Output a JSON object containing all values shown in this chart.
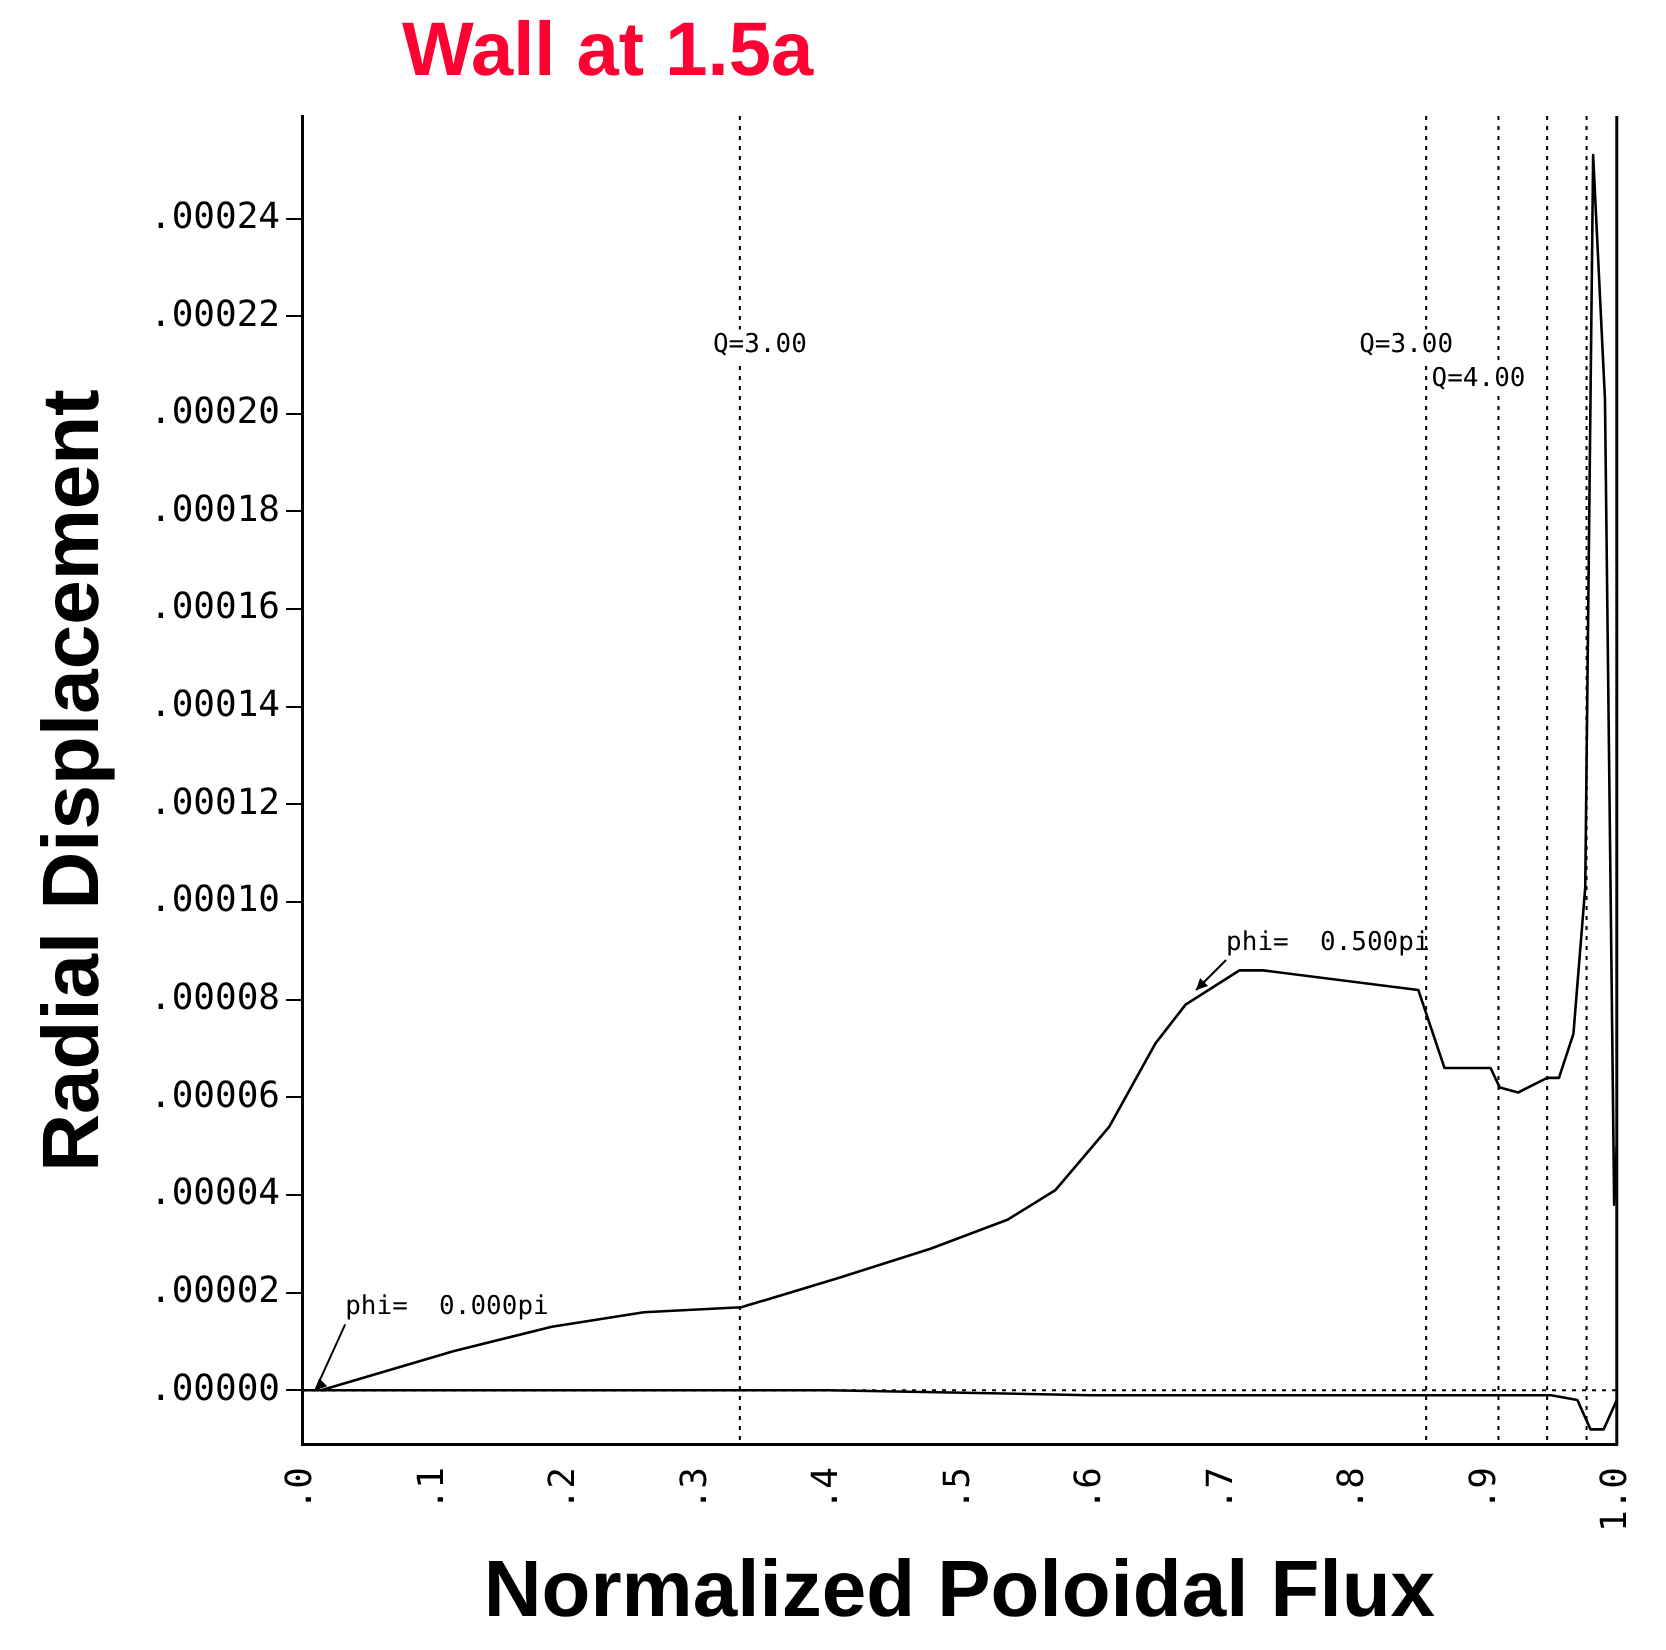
{
  "chart_data": {
    "type": "line",
    "title": "Wall at 1.5a",
    "xlabel": "Normalized Poloidal Flux",
    "ylabel": "Radial Displacement",
    "xlim": [
      0,
      1
    ],
    "ylim": [
      -1.12e-05,
      0.000261
    ],
    "xticks": [
      {
        "value": 0,
        "label": ".0"
      },
      {
        "value": 0.1,
        "label": ".1"
      },
      {
        "value": 0.2,
        "label": ".2"
      },
      {
        "value": 0.3,
        "label": ".3"
      },
      {
        "value": 0.4,
        "label": ".4"
      },
      {
        "value": 0.5,
        "label": ".5"
      },
      {
        "value": 0.6,
        "label": ".6"
      },
      {
        "value": 0.7,
        "label": ".7"
      },
      {
        "value": 0.8,
        "label": ".8"
      },
      {
        "value": 0.9,
        "label": ".9"
      },
      {
        "value": 1,
        "label": "1.0"
      }
    ],
    "yticks": [
      {
        "value": 0,
        "label": ".00000"
      },
      {
        "value": 2e-05,
        "label": ".00002"
      },
      {
        "value": 4e-05,
        "label": ".00004"
      },
      {
        "value": 6e-05,
        "label": ".00006"
      },
      {
        "value": 8e-05,
        "label": ".00008"
      },
      {
        "value": 0.0001,
        "label": ".00010"
      },
      {
        "value": 0.00012,
        "label": ".00012"
      },
      {
        "value": 0.00014,
        "label": ".00014"
      },
      {
        "value": 0.00016,
        "label": ".00016"
      },
      {
        "value": 0.00018,
        "label": ".00018"
      },
      {
        "value": 0.0002,
        "label": ".00020"
      },
      {
        "value": 0.00022,
        "label": ".00022"
      },
      {
        "value": 0.00024,
        "label": ".00024"
      }
    ],
    "grid": false,
    "legend": false,
    "marker": "none",
    "line_style": "solid",
    "series": [
      {
        "color": "#000000",
        "x": [
          0.0145,
          0.115,
          0.19,
          0.26,
          0.334,
          0.408,
          0.478,
          0.537,
          0.573,
          0.614,
          0.649,
          0.672,
          0.713,
          0.731,
          0.849,
          0.869,
          0.884,
          0.904,
          0.911,
          0.925,
          0.947,
          0.956,
          0.967,
          0.976,
          0.982,
          0.991,
          0.998,
          1.0
        ],
        "values": [
          0,
          8e-06,
          1.3e-05,
          1.6e-05,
          1.7e-05,
          2.3e-05,
          2.9e-05,
          3.5e-05,
          4.1e-05,
          5.4e-05,
          7.1e-05,
          7.9e-05,
          8.6e-05,
          8.6e-05,
          8.2e-05,
          6.6e-05,
          6.6e-05,
          6.6e-05,
          6.2e-05,
          6.1e-05,
          6.4e-05,
          6.4e-05,
          7.3e-05,
          0.000103,
          0.000253,
          0.000203,
          3.8e-05,
          5e-05
        ]
      },
      {
        "color": "#000000",
        "x": [
          0,
          0.2,
          0.4,
          0.6,
          0.7,
          0.85,
          0.95,
          0.97,
          0.98,
          0.99,
          1.0
        ],
        "values": [
          0,
          0,
          0,
          -1e-06,
          -1e-06,
          -1e-06,
          -1e-06,
          -2e-06,
          -8e-06,
          -8e-06,
          -2e-06
        ]
      }
    ],
    "ref_lines": [
      {
        "axis": "x",
        "value": 0.333,
        "line_style": "dotted"
      },
      {
        "axis": "x",
        "value": 0.855,
        "line_style": "dotted"
      },
      {
        "axis": "x",
        "value": 0.91,
        "line_style": "dotted"
      },
      {
        "axis": "x",
        "value": 0.947,
        "line_style": "dotted"
      },
      {
        "axis": "x",
        "value": 0.977,
        "line_style": "dotted"
      },
      {
        "axis": "y",
        "value": 0,
        "line_style": "dotted"
      }
    ],
    "annotations": [
      {
        "text": "Q=3.00",
        "x": 0.333,
        "y": 0.000214
      },
      {
        "text": "Q=3.00",
        "x": 0.855,
        "y": 0.000214
      },
      {
        "text": "Q=4.00",
        "x": 0.91,
        "y": 0.000207
      },
      {
        "text": "phi=  0.000pi",
        "x": 0.01,
        "y": 0
      },
      {
        "text": "phi=  0.500pi",
        "x": 0.68,
        "y": 8.2e-05
      }
    ]
  }
}
